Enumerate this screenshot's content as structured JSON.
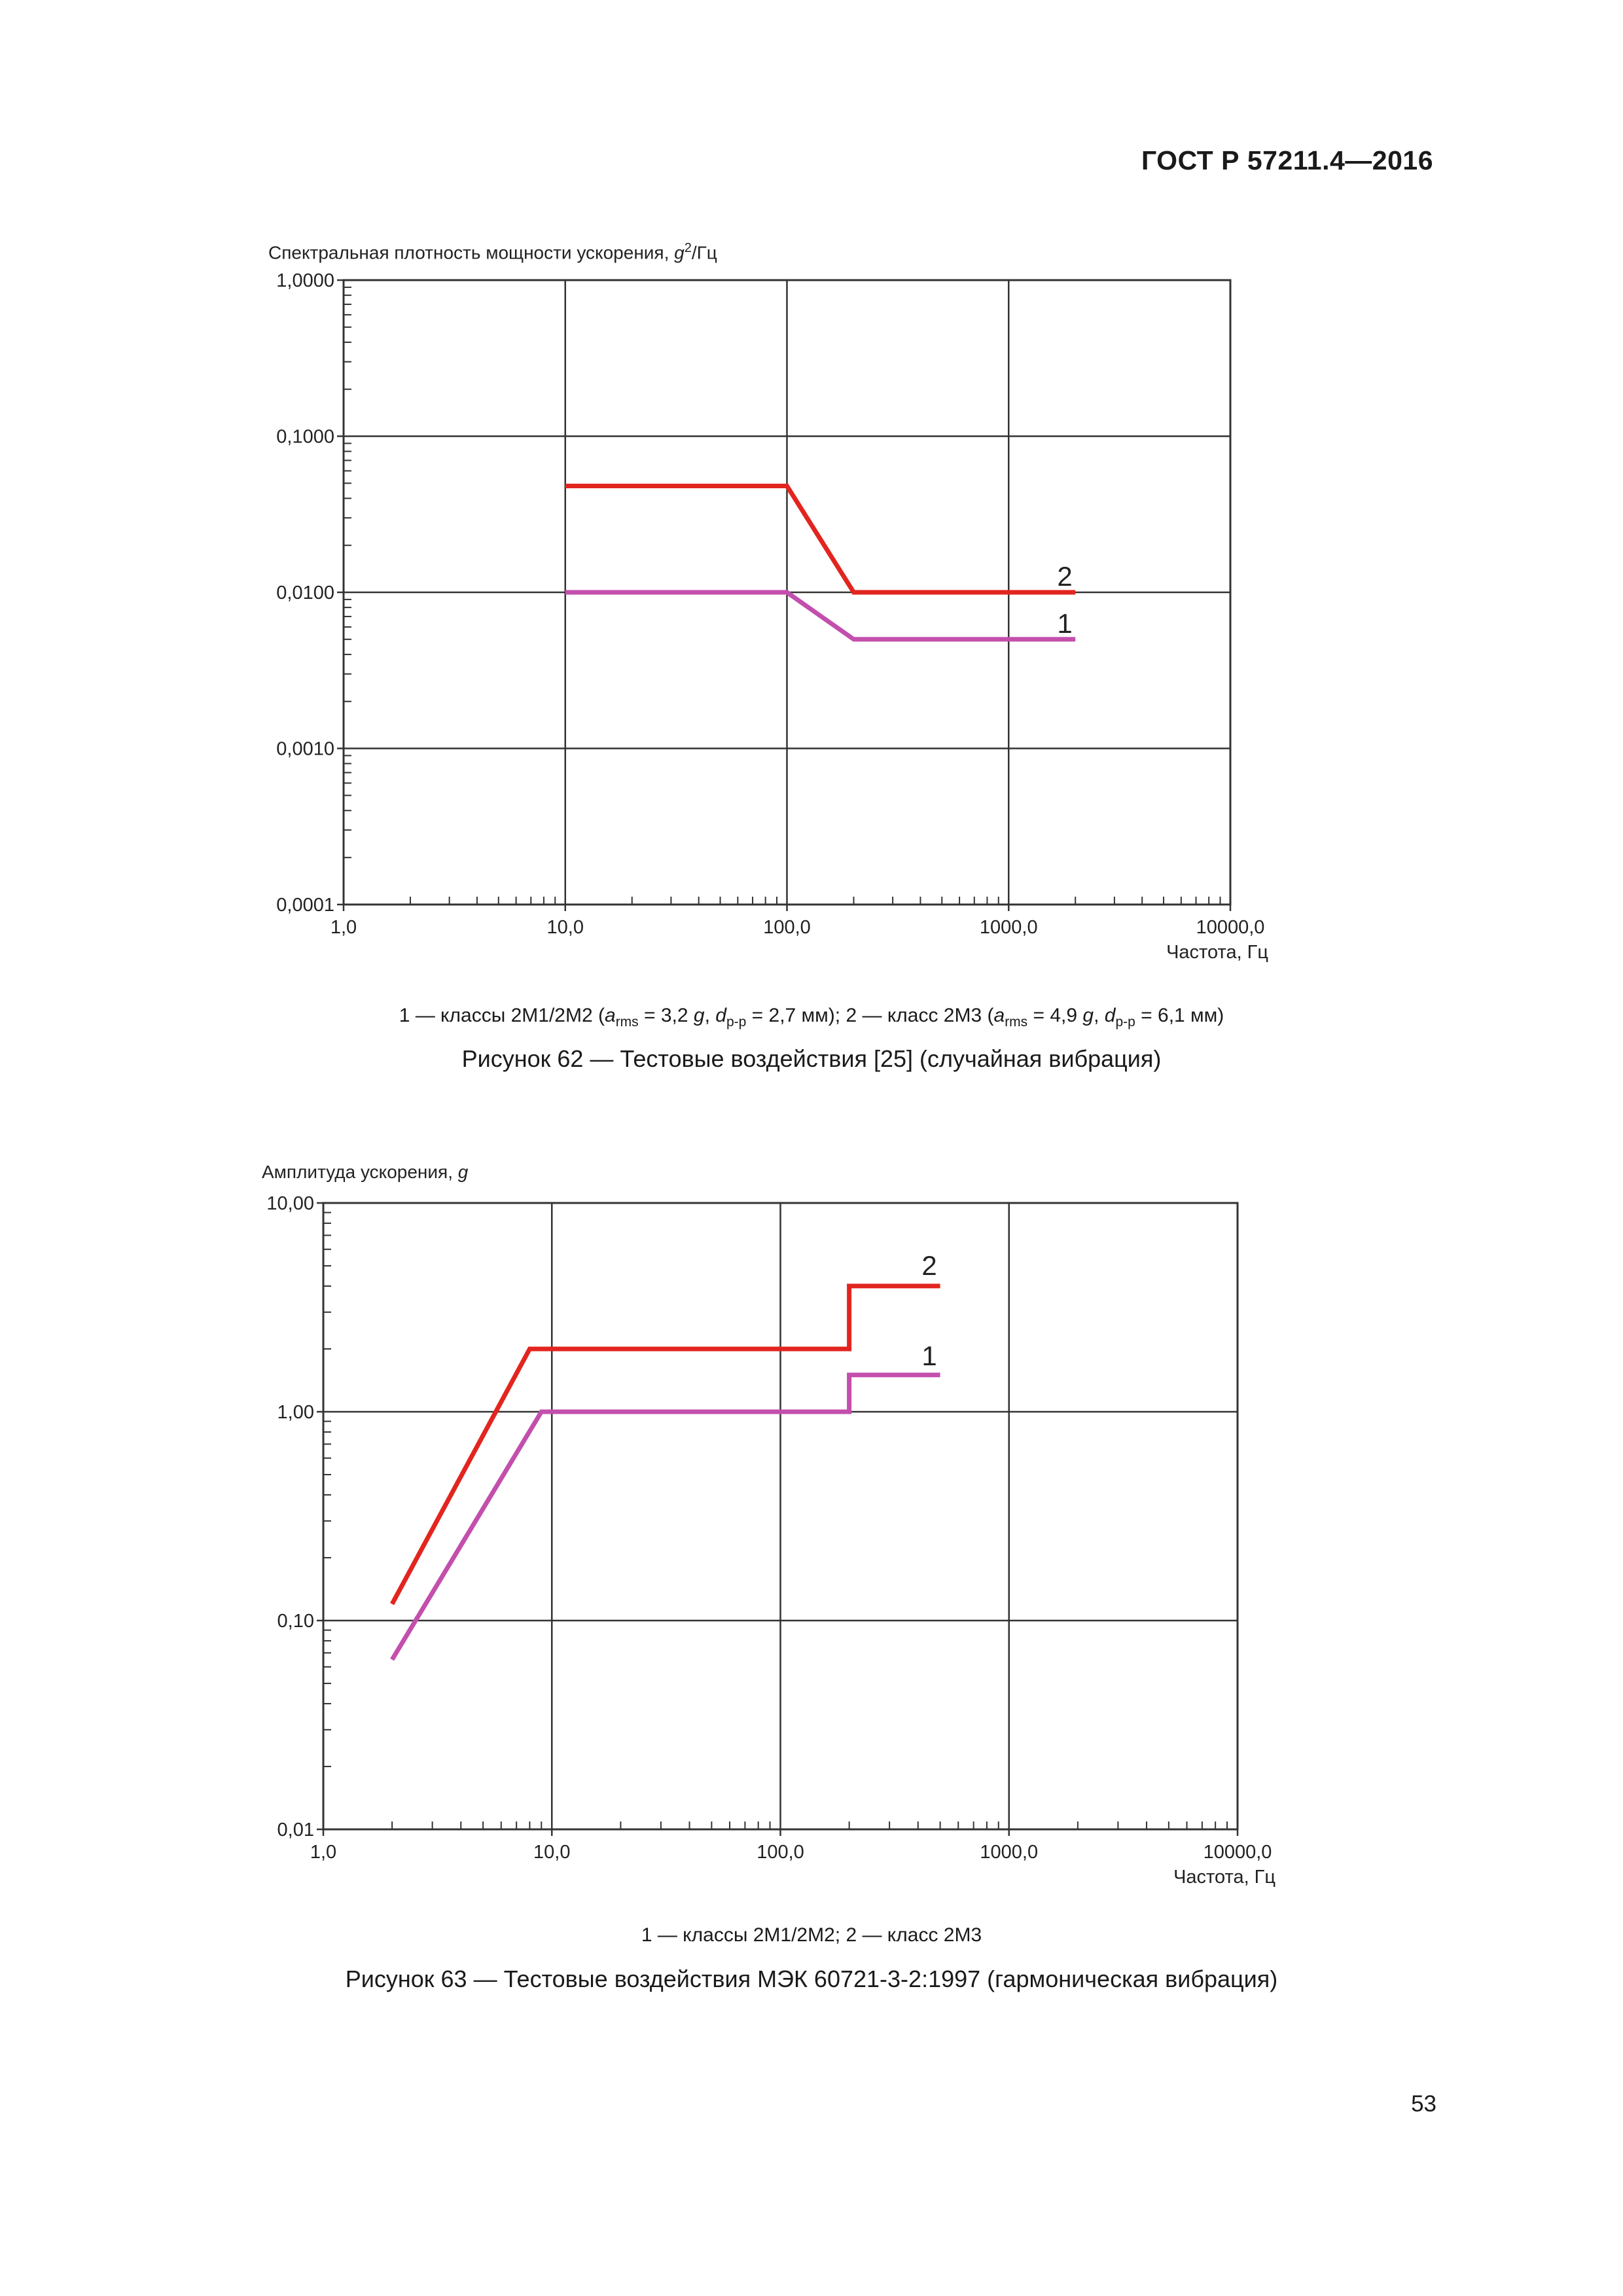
{
  "header": {
    "standard": "ГОСТ Р 57211.4—2016"
  },
  "chart_data": [
    {
      "type": "line",
      "y_label": {
        "main": "Спектральная плотность мощности ускорения, ",
        "var": "g",
        "sup": "2",
        "unit": "/Гц"
      },
      "xlabel": "Частота, Гц",
      "x_scale": "log",
      "y_scale": "log",
      "xlim": [
        1,
        10000
      ],
      "ylim": [
        0.0001,
        1
      ],
      "x_ticks": [
        1,
        10,
        100,
        1000,
        10000
      ],
      "x_tick_labels": [
        "1,0",
        "10,0",
        "100,0",
        "1000,0",
        "10000,0"
      ],
      "y_ticks": [
        0.0001,
        0.001,
        0.01,
        0.1,
        1
      ],
      "y_tick_labels": [
        "0,0001",
        "0,0010",
        "0,0100",
        "0,1000",
        "1,0000"
      ],
      "grid": true,
      "series": [
        {
          "name": "1",
          "color": "#c34fad",
          "x": [
            10,
            100,
            200,
            2000
          ],
          "y": [
            0.01,
            0.01,
            0.005,
            0.005
          ]
        },
        {
          "name": "2",
          "color": "#e3251f",
          "x": [
            10,
            100,
            200,
            2000
          ],
          "y": [
            0.048,
            0.048,
            0.01,
            0.01
          ]
        }
      ]
    },
    {
      "type": "line",
      "y_label": {
        "main": "Амплитуда ускорения, ",
        "var": "g",
        "sup": "",
        "unit": ""
      },
      "xlabel": "Частота, Гц",
      "x_scale": "log",
      "y_scale": "log",
      "xlim": [
        1,
        10000
      ],
      "ylim": [
        0.01,
        10
      ],
      "x_ticks": [
        1,
        10,
        100,
        1000,
        10000
      ],
      "x_tick_labels": [
        "1,0",
        "10,0",
        "100,0",
        "1000,0",
        "10000,0"
      ],
      "y_ticks": [
        0.01,
        0.1,
        1,
        10
      ],
      "y_tick_labels": [
        "0,01",
        "0,10",
        "1,00",
        "10,00"
      ],
      "grid": true,
      "series": [
        {
          "name": "1",
          "color": "#c34fad",
          "x": [
            2,
            9,
            200,
            200,
            500
          ],
          "y": [
            0.065,
            1,
            1,
            1.5,
            1.5
          ]
        },
        {
          "name": "2",
          "color": "#e3251f",
          "x": [
            2,
            8,
            200,
            200,
            500
          ],
          "y": [
            0.12,
            2,
            2,
            4,
            4
          ]
        }
      ]
    }
  ],
  "figure62": {
    "legend": {
      "part1": "1 — классы 2М1/2М2 (",
      "a": "a",
      "a_sub": "rms",
      "part2": " = 3,2 ",
      "g": "g",
      "part3": ", ",
      "d": "d",
      "d_sub": "p-p",
      "part4": " = 2,7 мм); 2 — класс 2М3 (",
      "part5": " = 4,9 ",
      "part6": " = 6,1 мм)"
    },
    "caption": "Рисунок 62 — Тестовые воздействия [25] (случайная вибрация)"
  },
  "figure63": {
    "legend": "1 — классы 2М1/2М2; 2 — класс 2М3",
    "caption": "Рисунок 63 — Тестовые воздействия МЭК 60721-3-2:1997 (гармоническая вибрация)"
  },
  "page_number": "53"
}
